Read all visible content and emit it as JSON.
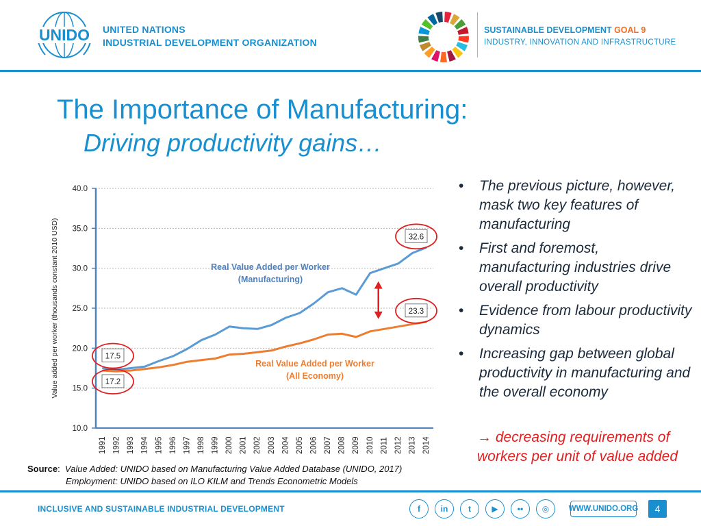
{
  "header": {
    "logo_text": "UNIDO",
    "org_line1": "UNITED NATIONS",
    "org_line2": "INDUSTRIAL DEVELOPMENT ORGANIZATION",
    "sdg_title": "SUSTAINABLE DEVELOPMENT",
    "sdg_goal": "GOAL 9",
    "sdg_sub": "INDUSTRY, INNOVATION AND INFRASTRUCTURE",
    "sdg_colors": [
      "#e5243b",
      "#dda63a",
      "#4c9f38",
      "#c5192d",
      "#ff3a21",
      "#26bde2",
      "#fcc30b",
      "#a21942",
      "#fd6925",
      "#dd1367",
      "#fd9d24",
      "#bf8b2e",
      "#3f7e44",
      "#0a97d9",
      "#56c02b",
      "#00689d",
      "#19486a"
    ]
  },
  "title": "The Importance of Manufacturing:",
  "subtitle": "Driving productivity gains…",
  "chart_data": {
    "type": "line",
    "title": "",
    "xlabel": "",
    "ylabel": "Value added per worker (thousands constant 2010 USD)",
    "ylim": [
      10,
      40
    ],
    "yticks": [
      10.0,
      15.0,
      20.0,
      25.0,
      30.0,
      35.0,
      40.0
    ],
    "ytick_labels": [
      "10.0",
      "15.0",
      "20.0",
      "25.0",
      "30.0",
      "35.0",
      "40.0"
    ],
    "grid": true,
    "categories": [
      "1991",
      "1992",
      "1993",
      "1994",
      "1995",
      "1996",
      "1997",
      "1998",
      "1999",
      "2000",
      "2001",
      "2002",
      "2003",
      "2004",
      "2005",
      "2006",
      "2007",
      "2008",
      "2009",
      "2010",
      "2011",
      "2012",
      "2013",
      "2014"
    ],
    "series": [
      {
        "name": "Real Value Added per Worker (Manufacturing)",
        "label_line1": "Real Value Added per Worker",
        "label_line2": "(Manufacturing)",
        "color": "#5b9bd5",
        "values": [
          17.5,
          17.3,
          17.5,
          17.7,
          18.4,
          19.0,
          19.9,
          21.0,
          21.7,
          22.7,
          22.5,
          22.4,
          22.9,
          23.8,
          24.4,
          25.6,
          27.0,
          27.5,
          26.7,
          29.4,
          30.0,
          30.6,
          31.9,
          32.6
        ]
      },
      {
        "name": "Real Value Added per Worker (All Economy)",
        "label_line1": "Real Value Added per Worker",
        "label_line2": "(All Economy)",
        "color": "#ed7d31",
        "values": [
          17.2,
          17.1,
          17.2,
          17.4,
          17.6,
          17.9,
          18.3,
          18.5,
          18.7,
          19.2,
          19.3,
          19.5,
          19.7,
          20.2,
          20.6,
          21.1,
          21.7,
          21.8,
          21.4,
          22.1,
          22.4,
          22.7,
          23.0,
          23.3
        ]
      }
    ],
    "annotations": [
      {
        "text": "32.6",
        "series": 0,
        "index": 23
      },
      {
        "text": "23.3",
        "series": 1,
        "index": 23
      },
      {
        "text": "17.5",
        "series": 0,
        "index": 0
      },
      {
        "text": "17.2",
        "series": 1,
        "index": 0
      }
    ],
    "highlight_color": "#e02020"
  },
  "bullets": [
    "The previous picture, however, mask two key features of manufacturing",
    "First and foremost, manufacturing industries drive overall productivity",
    "Evidence from labour productivity dynamics",
    "Increasing gap between global productivity in manufacturing and the overall economy"
  ],
  "bullet_symbol": "•",
  "conclusion": "→ decreasing requirements of workers per unit of value added",
  "source": {
    "label": "Source",
    "line1": "Value Added: UNIDO based on Manufacturing Value Added Database (UNIDO, 2017)",
    "line2": "Employment: UNIDO based on ILO KILM and Trends Econometric Models"
  },
  "footer": {
    "tagline": "INCLUSIVE AND SUSTAINABLE INDUSTRIAL DEVELOPMENT",
    "social": [
      {
        "name": "facebook-icon",
        "glyph": "f"
      },
      {
        "name": "linkedin-icon",
        "glyph": "in"
      },
      {
        "name": "twitter-icon",
        "glyph": "t"
      },
      {
        "name": "youtube-icon",
        "glyph": "▶"
      },
      {
        "name": "flickr-icon",
        "glyph": "••"
      },
      {
        "name": "instagram-icon",
        "glyph": "◎"
      }
    ],
    "website": "WWW.UNIDO.ORG",
    "page_number": "4"
  }
}
